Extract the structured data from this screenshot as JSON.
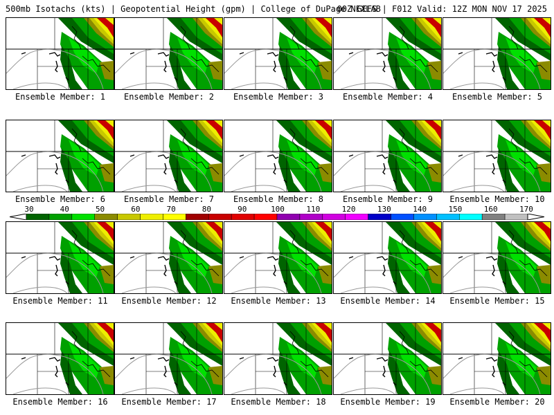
{
  "header": {
    "left": "500mb Isotachs (kts) | Geopotential Height (gpm) | College of DuPage NEXLAB",
    "right": "00Z GEFS | F012 Valid: 12Z MON NOV 17 2025"
  },
  "members": [
    {
      "label": "Ensemble Member: 1"
    },
    {
      "label": "Ensemble Member: 2"
    },
    {
      "label": "Ensemble Member: 3"
    },
    {
      "label": "Ensemble Member: 4"
    },
    {
      "label": "Ensemble Member: 5"
    },
    {
      "label": "Ensemble Member: 6"
    },
    {
      "label": "Ensemble Member: 7"
    },
    {
      "label": "Ensemble Member: 8"
    },
    {
      "label": "Ensemble Member: 9"
    },
    {
      "label": "Ensemble Member: 10"
    },
    {
      "label": "Ensemble Member: 11"
    },
    {
      "label": "Ensemble Member: 12"
    },
    {
      "label": "Ensemble Member: 13"
    },
    {
      "label": "Ensemble Member: 14"
    },
    {
      "label": "Ensemble Member: 15"
    },
    {
      "label": "Ensemble Member: 16"
    },
    {
      "label": "Ensemble Member: 17"
    },
    {
      "label": "Ensemble Member: 18"
    },
    {
      "label": "Ensemble Member: 19"
    },
    {
      "label": "Ensemble Member: 20"
    }
  ],
  "colorbar": {
    "bins": [
      {
        "color": "#006400"
      },
      {
        "color": "#00a000"
      },
      {
        "color": "#00e000"
      },
      {
        "color": "#8b8b00"
      },
      {
        "color": "#c8c800"
      },
      {
        "color": "#eeee00"
      },
      {
        "color": "#ffff00"
      },
      {
        "color": "#a00000"
      },
      {
        "color": "#c80000"
      },
      {
        "color": "#e00000"
      },
      {
        "color": "#ff0000"
      },
      {
        "color": "#9000b0"
      },
      {
        "color": "#b000c8"
      },
      {
        "color": "#d000e0"
      },
      {
        "color": "#f000ff"
      },
      {
        "color": "#0000c8"
      },
      {
        "color": "#0050ff"
      },
      {
        "color": "#0090ff"
      },
      {
        "color": "#00c0ff"
      },
      {
        "color": "#00ffff"
      },
      {
        "color": "#808080"
      },
      {
        "color": "#c0c0c0"
      }
    ],
    "labels": [
      {
        "text": "30",
        "value": 30
      },
      {
        "text": "40",
        "value": 40
      },
      {
        "text": "50",
        "value": 50
      },
      {
        "text": "60",
        "value": 60
      },
      {
        "text": "70",
        "value": 70
      },
      {
        "text": "80",
        "value": 80
      },
      {
        "text": "90",
        "value": 90
      },
      {
        "text": "100",
        "value": 100
      },
      {
        "text": "110",
        "value": 110
      },
      {
        "text": "120",
        "value": 120
      },
      {
        "text": "130",
        "value": 130
      },
      {
        "text": "140",
        "value": 140
      },
      {
        "text": "150",
        "value": 150
      },
      {
        "text": "160",
        "value": 160
      },
      {
        "text": "170",
        "value": 170
      }
    ]
  }
}
